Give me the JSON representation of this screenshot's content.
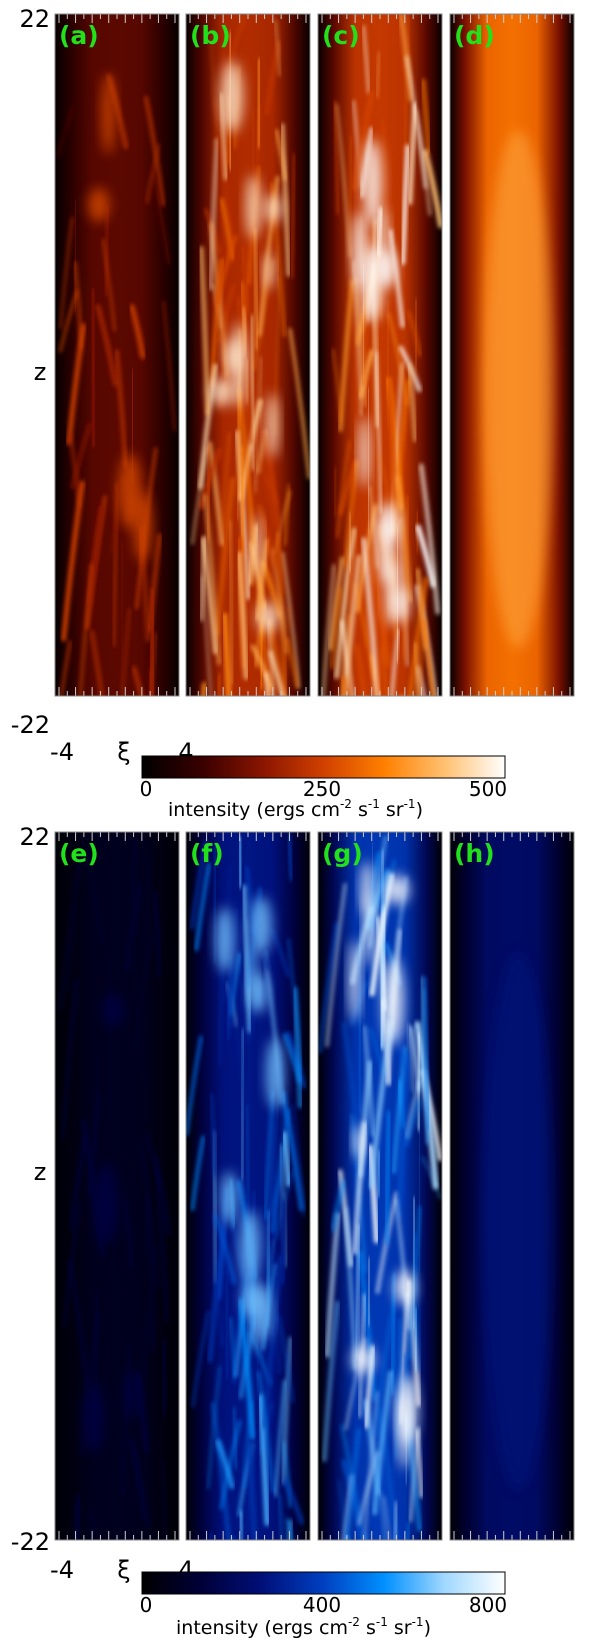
{
  "chart_data": [
    {
      "type": "heatmap",
      "title": "",
      "xlabel": "ξ",
      "ylabel": "z",
      "x_ticks": [
        "-4",
        "4"
      ],
      "y_ticks": [
        "22",
        "-22"
      ],
      "xlim": [
        -4,
        4
      ],
      "ylim": [
        -22,
        22
      ],
      "colormap": "black-red-orange-white",
      "panels": [
        {
          "label": "(a)",
          "intensity_peak": 250
        },
        {
          "label": "(b)",
          "intensity_peak": 450
        },
        {
          "label": "(c)",
          "intensity_peak": 500
        },
        {
          "label": "(d)",
          "intensity_peak": 350
        }
      ],
      "colorbar": {
        "label": "intensity (ergs cm",
        "label_parts": [
          "intensity (ergs cm",
          "-2",
          " s",
          "-1",
          " sr",
          "-1",
          ")"
        ],
        "ticks": [
          "0",
          "250",
          "500"
        ],
        "range": [
          0,
          500
        ]
      }
    },
    {
      "type": "heatmap",
      "title": "",
      "xlabel": "ξ",
      "ylabel": "z",
      "x_ticks": [
        "-4",
        "4"
      ],
      "y_ticks": [
        "22",
        "-22"
      ],
      "xlim": [
        -4,
        4
      ],
      "ylim": [
        -22,
        22
      ],
      "colormap": "black-blue-cyan-white",
      "panels": [
        {
          "label": "(e)",
          "intensity_peak": 150
        },
        {
          "label": "(f)",
          "intensity_peak": 600
        },
        {
          "label": "(g)",
          "intensity_peak": 800
        },
        {
          "label": "(h)",
          "intensity_peak": 250
        }
      ],
      "colorbar": {
        "label_parts": [
          "intensity (ergs cm",
          "-2",
          " s",
          "-1",
          " sr",
          "-1",
          ")"
        ],
        "ticks": [
          "0",
          "400",
          "800"
        ],
        "range": [
          0,
          800
        ]
      }
    }
  ],
  "colors": {
    "panel_label": "#22e01a",
    "red_map": [
      "#000000",
      "#3a0000",
      "#8a1500",
      "#d04000",
      "#ff8000",
      "#ffc070",
      "#ffffff"
    ],
    "blue_map": [
      "#000000",
      "#00003a",
      "#00107a",
      "#0040c0",
      "#0090ff",
      "#a0d8ff",
      "#ffffff"
    ]
  }
}
